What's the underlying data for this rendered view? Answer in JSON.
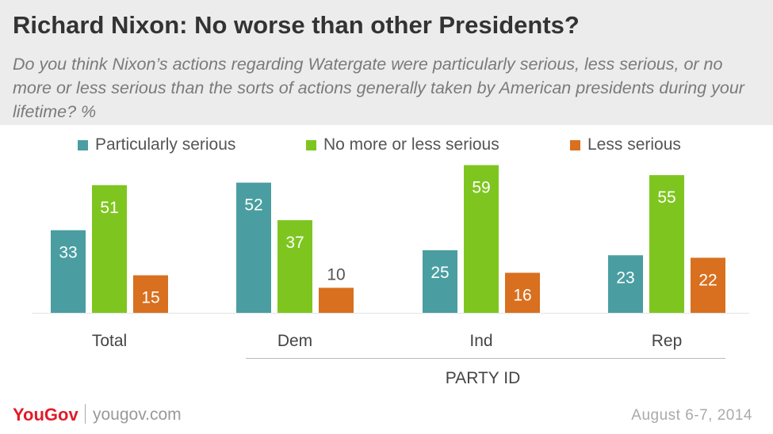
{
  "header": {
    "title": "Richard Nixon: No worse than other Presidents?",
    "subtitle": "Do you think Nixon’s actions regarding Watergate were particularly serious, less serious, or no more or less serious than the sorts of actions generally taken by American presidents during your lifetime? %"
  },
  "legend": {
    "items": [
      {
        "label": "Particularly serious",
        "color": "#4a9ea1"
      },
      {
        "label": "No more or less serious",
        "color": "#7ec61f"
      },
      {
        "label": "Less serious",
        "color": "#d8701f"
      }
    ]
  },
  "chart_data": {
    "type": "bar",
    "categories": [
      "Total",
      "Dem",
      "Ind",
      "Rep"
    ],
    "series": [
      {
        "name": "Particularly serious",
        "values": [
          33,
          52,
          25,
          23
        ],
        "color": "#4a9ea1"
      },
      {
        "name": "No more or less serious",
        "values": [
          51,
          37,
          59,
          55
        ],
        "color": "#7ec61f"
      },
      {
        "name": "Less serious",
        "values": [
          15,
          10,
          16,
          22
        ],
        "color": "#d8701f"
      }
    ],
    "group_label": "PARTY ID",
    "ylim": [
      0,
      62
    ],
    "grid": false,
    "legend": "top"
  },
  "footer": {
    "logo": "YouGov",
    "site": "yougov.com",
    "date": "August 6-7, 2014"
  }
}
